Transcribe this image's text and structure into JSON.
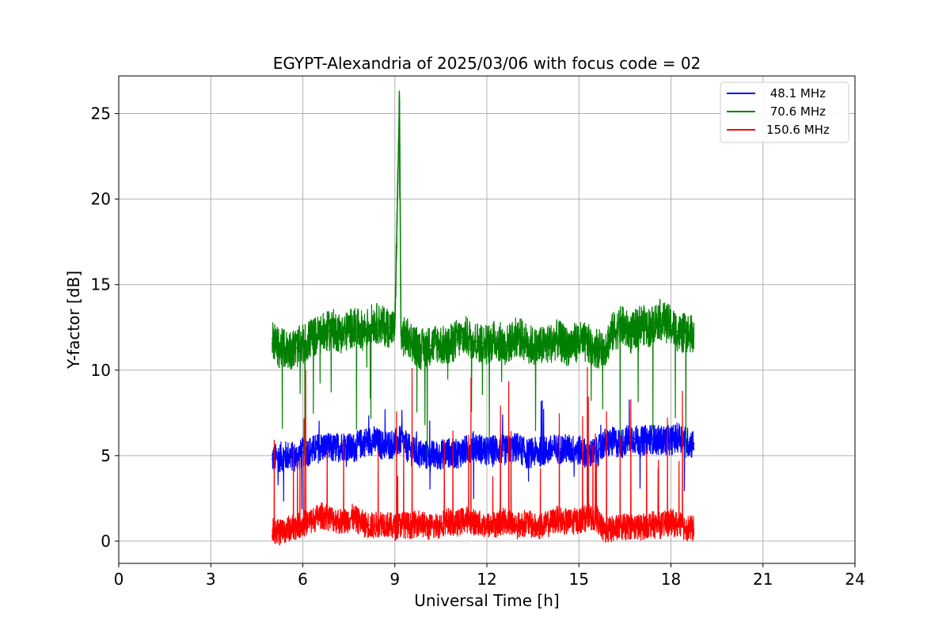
{
  "chart_data": {
    "type": "line",
    "title": "EGYPT-Alexandria of 2025/03/06 with focus code = 02",
    "xlabel": "Universal Time [h]",
    "ylabel": "Y-factor [dB]",
    "xlim": [
      0,
      24
    ],
    "ylim": [
      -1.3,
      27.2
    ],
    "xticks": [
      0,
      3,
      6,
      9,
      12,
      15,
      18,
      21,
      24
    ],
    "yticks": [
      0,
      5,
      10,
      15,
      20,
      25
    ],
    "xtick_labels": [
      "0",
      "3",
      "6",
      "9",
      "12",
      "15",
      "18",
      "21",
      "24"
    ],
    "ytick_labels": [
      "0",
      "5",
      "10",
      "15",
      "20",
      "25"
    ],
    "grid": true,
    "legend_position": "top-right",
    "series": [
      {
        "name": " 48.1 MHz",
        "color": "#0000ff",
        "x": [
          5.0,
          5.2,
          5.5,
          5.8,
          6.0,
          6.3,
          6.6,
          7.0,
          7.3,
          7.6,
          8.0,
          8.3,
          8.6,
          9.0,
          9.2,
          9.5,
          9.8,
          10.1,
          10.4,
          10.7,
          11.0,
          11.3,
          11.6,
          12.0,
          12.3,
          12.6,
          13.0,
          13.3,
          13.6,
          14.0,
          14.3,
          14.6,
          15.0,
          15.3,
          15.6,
          15.8,
          16.1,
          16.4,
          16.7,
          17.0,
          17.3,
          17.6,
          18.0,
          18.3,
          18.5,
          18.75
        ],
        "y": [
          4.8,
          4.9,
          5.0,
          4.9,
          5.2,
          5.3,
          5.5,
          5.4,
          5.6,
          5.4,
          5.8,
          5.9,
          5.6,
          5.7,
          5.9,
          5.3,
          5.1,
          5.0,
          5.0,
          5.2,
          5.1,
          5.3,
          5.6,
          5.2,
          5.4,
          5.3,
          5.5,
          5.1,
          5.2,
          5.3,
          5.4,
          5.4,
          5.3,
          5.1,
          5.2,
          5.7,
          5.8,
          5.7,
          6.1,
          5.8,
          6.0,
          5.9,
          5.9,
          6.1,
          5.8,
          5.7
        ]
      },
      {
        "name": " 70.6 MHz",
        "color": "#008000",
        "x": [
          5.0,
          5.2,
          5.5,
          5.8,
          6.0,
          6.3,
          6.6,
          7.0,
          7.3,
          7.6,
          8.0,
          8.3,
          8.6,
          9.0,
          9.15,
          9.2,
          9.5,
          9.8,
          10.1,
          10.4,
          10.7,
          11.0,
          11.3,
          11.6,
          12.0,
          12.3,
          12.6,
          13.0,
          13.3,
          13.6,
          14.0,
          14.3,
          14.6,
          15.0,
          15.3,
          15.6,
          15.8,
          16.1,
          16.4,
          16.7,
          17.0,
          17.3,
          17.6,
          18.0,
          18.3,
          18.5,
          18.75
        ],
        "y": [
          11.8,
          11.3,
          11.2,
          11.3,
          11.5,
          11.9,
          12.1,
          12.4,
          12.1,
          12.5,
          12.3,
          12.8,
          12.6,
          12.4,
          25.9,
          12.0,
          11.8,
          11.2,
          11.4,
          11.6,
          11.3,
          11.8,
          12.0,
          11.7,
          11.5,
          11.8,
          11.4,
          12.0,
          11.6,
          11.3,
          11.5,
          11.8,
          11.4,
          11.7,
          11.5,
          11.3,
          11.2,
          12.2,
          12.6,
          12.1,
          12.7,
          12.5,
          13.0,
          12.6,
          12.1,
          12.2,
          12.0
        ]
      },
      {
        "name": "150.6 MHz",
        "color": "#ff0000",
        "x": [
          5.0,
          5.2,
          5.5,
          5.8,
          6.0,
          6.3,
          6.6,
          7.0,
          7.3,
          7.6,
          8.0,
          8.3,
          8.6,
          9.0,
          9.2,
          9.5,
          9.8,
          10.1,
          10.4,
          10.7,
          11.0,
          11.3,
          11.6,
          12.0,
          12.3,
          12.6,
          13.0,
          13.3,
          13.6,
          14.0,
          14.3,
          14.6,
          15.0,
          15.3,
          15.6,
          15.8,
          16.1,
          16.4,
          16.7,
          17.0,
          17.3,
          17.6,
          18.0,
          18.3,
          18.5,
          18.75
        ],
        "y": [
          0.6,
          0.5,
          0.7,
          0.9,
          1.0,
          1.2,
          1.5,
          1.3,
          1.1,
          1.4,
          1.0,
          0.9,
          1.1,
          0.8,
          1.0,
          0.9,
          1.1,
          0.8,
          0.9,
          1.2,
          1.0,
          1.3,
          1.1,
          0.9,
          1.0,
          1.2,
          0.9,
          1.1,
          0.8,
          1.0,
          1.3,
          1.1,
          1.2,
          1.4,
          1.3,
          0.6,
          0.7,
          0.8,
          0.9,
          0.8,
          1.0,
          0.9,
          1.1,
          0.9,
          0.8,
          0.7
        ]
      }
    ]
  }
}
